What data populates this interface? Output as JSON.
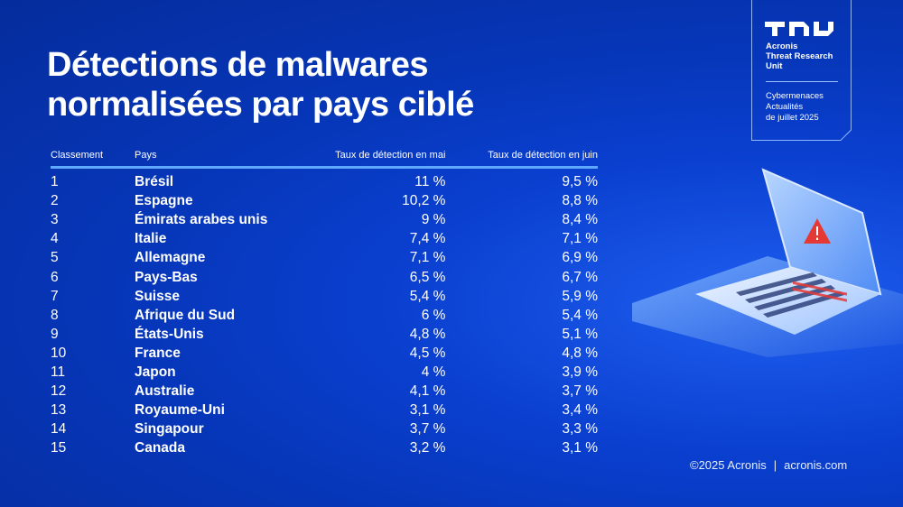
{
  "title_lines": [
    "Détections de malwares",
    "normalisées par pays ciblé"
  ],
  "brand": {
    "name_lines": [
      "Acronis",
      "Threat Research",
      "Unit"
    ],
    "report_lines": [
      "Cybermenaces",
      "Actualités",
      "de juillet 2025"
    ]
  },
  "footer": {
    "copyright": "©2025 Acronis",
    "separator": "|",
    "website": "acronis.com"
  },
  "colors": {
    "background": "#0a3fcf",
    "header_rule": "#5fa8ff",
    "warning": "#e53935"
  },
  "icons": [
    "tru-logo-icon",
    "laptop-warning-illustration"
  ],
  "chart_data": {
    "type": "table",
    "columns": [
      "Classement",
      "Pays",
      "Taux de détection en mai",
      "Taux de détection en juin"
    ],
    "rows": [
      [
        "1",
        "Brésil",
        "11 %",
        "9,5 %"
      ],
      [
        "2",
        "Espagne",
        "10,2 %",
        "8,8 %"
      ],
      [
        "3",
        "Émirats arabes unis",
        "9 %",
        "8,4 %"
      ],
      [
        "4",
        "Italie",
        "7,4 %",
        "7,1 %"
      ],
      [
        "5",
        "Allemagne",
        "7,1 %",
        "6,9 %"
      ],
      [
        "6",
        "Pays-Bas",
        "6,5 %",
        "6,7 %"
      ],
      [
        "7",
        "Suisse",
        "5,4 %",
        "5,9 %"
      ],
      [
        "8",
        "Afrique du Sud",
        "6 %",
        "5,4 %"
      ],
      [
        "9",
        "États-Unis",
        "4,8 %",
        "5,1 %"
      ],
      [
        "10",
        "France",
        "4,5 %",
        "4,8 %"
      ],
      [
        "11",
        "Japon",
        "4 %",
        "3,9 %"
      ],
      [
        "12",
        "Australie",
        "4,1 %",
        "3,7 %"
      ],
      [
        "13",
        "Royaume-Uni",
        "3,1 %",
        "3,4 %"
      ],
      [
        "14",
        "Singapour",
        "3,7 %",
        "3,3 %"
      ],
      [
        "15",
        "Canada",
        "3,2 %",
        "3,1 %"
      ]
    ]
  }
}
